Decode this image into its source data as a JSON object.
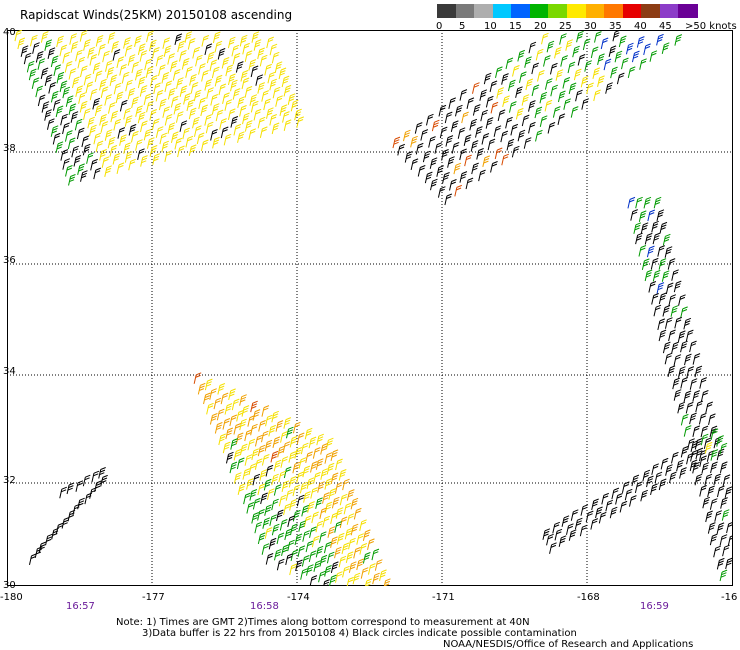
{
  "title": "Rapidscat Winds(25KM) 20150108 ascending",
  "color_scale": {
    "labels": [
      "0",
      "5",
      "10",
      "15",
      "20",
      "25",
      "30",
      "35",
      "40",
      "45",
      ">50 knots"
    ],
    "colors": [
      "#3a3a3a",
      "#7a7a7a",
      "#aeaeae",
      "#00c8ff",
      "#0064ff",
      "#00b400",
      "#7ad800",
      "#ffea00",
      "#ffb000",
      "#ff7800",
      "#e60000",
      "#8c3c14",
      "#8c3cc8",
      "#6a0096"
    ]
  },
  "map": {
    "lat_labels": [
      "40",
      "38",
      "36",
      "34",
      "32",
      "30"
    ],
    "lon_labels": [
      "-180",
      "-177",
      "-174",
      "-171",
      "-168",
      "-16"
    ],
    "time_labels": [
      "16:57",
      "16:58",
      "16:59"
    ],
    "swath_palette": {
      "black": "#000000",
      "green": "#009a00",
      "yellow": "#f5e000",
      "orange": "#f0a000",
      "red": "#d84a00",
      "blue": "#0030c8"
    }
  },
  "notes": {
    "line1": "Note: 1) Times are GMT 2)Times along bottom correspond to measurement at 40N",
    "line2": "3)Data buffer is 22 hrs from 20150108 4) Black circles indicate possible contamination",
    "line3": "NOAA/NESDIS/Office of Research and Applications"
  }
}
